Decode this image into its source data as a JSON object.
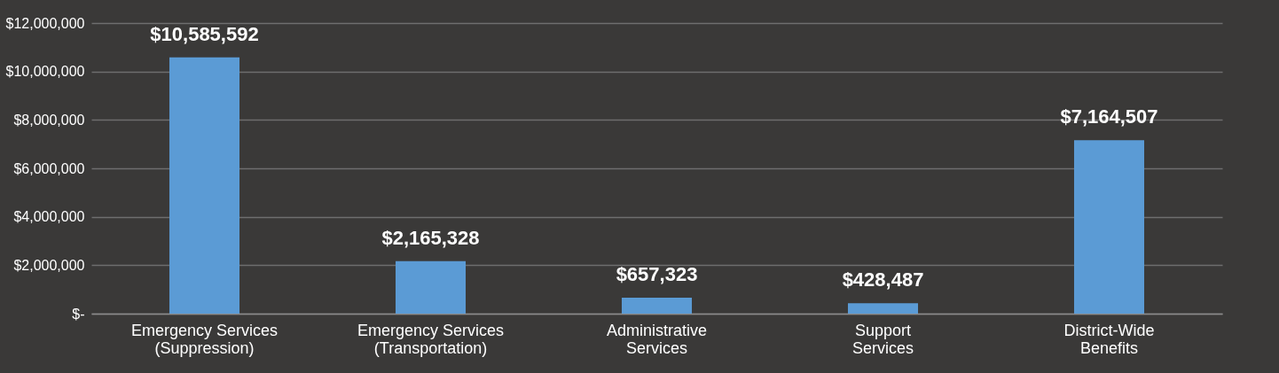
{
  "chart_data": {
    "type": "bar",
    "categories": [
      "Emergency Services (Suppression)",
      "Emergency Services (Transportation)",
      "Administrative Services",
      "Support Services",
      "District-Wide Benefits"
    ],
    "values": [
      10585592,
      2165328,
      657323,
      428487,
      7164507
    ],
    "value_labels": [
      "$10,585,592",
      "$2,165,328",
      "$657,323",
      "$428,487",
      "$7,164,507"
    ],
    "color": "#5b9bd5",
    "ylim": [
      0,
      12000000
    ],
    "yticks": [
      {
        "value": 0,
        "label": "$-"
      },
      {
        "value": 2000000,
        "label": "$2,000,000"
      },
      {
        "value": 4000000,
        "label": "$4,000,000"
      },
      {
        "value": 6000000,
        "label": "$6,000,000"
      },
      {
        "value": 8000000,
        "label": "$8,000,000"
      },
      {
        "value": 10000000,
        "label": "$10,000,000"
      },
      {
        "value": 12000000,
        "label": "$12,000,000"
      }
    ],
    "grid": true
  }
}
